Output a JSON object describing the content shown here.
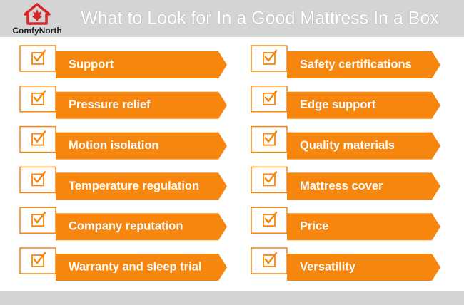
{
  "header": {
    "logo_text": "ComfyNorth",
    "title": "What to Look for In a Good Mattress In a Box"
  },
  "items": {
    "left": [
      "Support",
      "Pressure relief",
      "Motion isolation",
      "Temperature regulation",
      "Company reputation",
      "Warranty and sleep trial"
    ],
    "right": [
      "Safety certifications",
      "Edge support",
      "Quality materials",
      "Mattress cover",
      "Price",
      "Versatility"
    ]
  }
}
